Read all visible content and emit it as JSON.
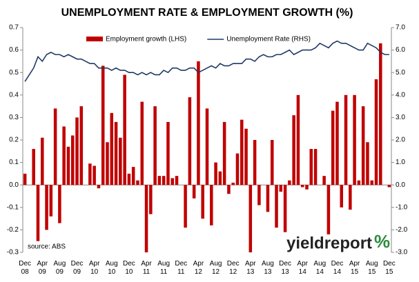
{
  "chart_data": {
    "type": "bar_line",
    "title": "UNEMPLOYMENT RATE & EMPLOYMENT GROWTH (%)",
    "categories": [
      "Dec 08",
      null,
      null,
      null,
      "Apr 09",
      null,
      null,
      null,
      "Aug 09",
      null,
      null,
      null,
      "Dec 09",
      null,
      null,
      null,
      "Apr 10",
      null,
      null,
      null,
      "Aug 10",
      null,
      null,
      null,
      "Dec 10",
      null,
      null,
      null,
      "Apr 11",
      null,
      null,
      null,
      "Aug 11",
      null,
      null,
      null,
      "Dec 11",
      null,
      null,
      null,
      "Apr 12",
      null,
      null,
      null,
      "Aug 12",
      null,
      null,
      null,
      "Dec 12",
      null,
      null,
      null,
      "Apr 13",
      null,
      null,
      null,
      "Aug 13",
      null,
      null,
      null,
      "Dec 13",
      null,
      null,
      null,
      "Apr 14",
      null,
      null,
      null,
      "Aug 14",
      null,
      null,
      null,
      "Dec 14",
      null,
      null,
      null,
      "Apr 15",
      null,
      null,
      null,
      "Aug 15",
      null,
      null,
      null,
      "Dec 15"
    ],
    "series": [
      {
        "name": "Employment growth (LHS)",
        "type": "bar",
        "color": "#c00000",
        "values": [
          0.05,
          0,
          0.16,
          -0.25,
          0.21,
          -0.2,
          -0.14,
          0.34,
          -0.17,
          0.26,
          0.17,
          0.22,
          0.3,
          0.35,
          0,
          0.095,
          0.085,
          -0.015,
          0.53,
          0.19,
          0.32,
          0.28,
          0.21,
          0.49,
          0.05,
          0.08,
          0.02,
          0.37,
          -0.3,
          -0.13,
          0.35,
          0.04,
          0.04,
          0.28,
          0.03,
          0.04,
          0,
          -0.19,
          0.39,
          -0.06,
          0.55,
          -0.15,
          0.34,
          -0.18,
          0.1,
          0.06,
          0.28,
          -0.04,
          0.01,
          0.14,
          0.29,
          0.25,
          -0.3,
          0.2,
          -0.09,
          0,
          -0.12,
          0.2,
          -0.19,
          -0.03,
          -0.21,
          0.02,
          0.31,
          0.4,
          -0.01,
          -0.02,
          0.16,
          0.16,
          0,
          0.04,
          -0.22,
          0.33,
          0.37,
          -0.1,
          0.4,
          -0.11,
          0.4,
          0.02,
          0.35,
          0.19,
          0.02,
          0.47,
          0.63,
          0,
          -0.01
        ]
      },
      {
        "name": "Unemployment Rate (RHS)",
        "type": "line",
        "axis": "y2",
        "color": "#1f3864",
        "values": [
          4.6,
          4.9,
          5.2,
          5.7,
          5.5,
          5.8,
          5.9,
          5.8,
          5.8,
          5.7,
          5.8,
          5.7,
          5.6,
          5.6,
          5.5,
          5.4,
          5.4,
          5.2,
          5.2,
          5.2,
          5.1,
          5.2,
          5.1,
          5.1,
          5.0,
          5.0,
          4.9,
          5.0,
          4.9,
          5.0,
          4.9,
          4.9,
          5.1,
          5.0,
          5.2,
          5.2,
          5.1,
          5.1,
          5.2,
          5.2,
          5.0,
          5.1,
          5.2,
          5.3,
          5.2,
          5.4,
          5.3,
          5.3,
          5.4,
          5.4,
          5.4,
          5.6,
          5.6,
          5.5,
          5.7,
          5.8,
          5.7,
          5.7,
          5.8,
          5.8,
          5.9,
          6.0,
          5.8,
          5.9,
          6.0,
          6.0,
          6.0,
          6.1,
          6.3,
          6.2,
          6.1,
          6.3,
          6.4,
          6.3,
          6.3,
          6.2,
          6.1,
          6.0,
          6.0,
          6.3,
          6.2,
          6.1,
          5.9,
          5.8,
          5.8
        ]
      }
    ],
    "ylim": [
      -0.3,
      0.7
    ],
    "yticks": [
      {
        "value": -0.3,
        "label": "-0.3"
      },
      {
        "value": -0.2,
        "label": "-0.2"
      },
      {
        "value": -0.1,
        "label": "-0.1"
      },
      {
        "value": 0,
        "label": "0.0"
      },
      0.1,
      0.2,
      0.3,
      0.4,
      0.5,
      0.6,
      0.7
    ],
    "y2lim": [
      -3,
      7
    ],
    "y2ticks": [
      {
        "value": -3,
        "label": "-3.0"
      },
      {
        "value": -2,
        "label": "-2.0"
      },
      {
        "value": -1,
        "label": "-1.0"
      },
      {
        "value": 0,
        "label": "0.0"
      },
      {
        "value": 1,
        "label": "1.0"
      },
      {
        "value": 2,
        "label": "2.0"
      },
      {
        "value": 3,
        "label": "3.0"
      },
      {
        "value": 4,
        "label": "4.0"
      },
      {
        "value": 5,
        "label": "5.0"
      },
      {
        "value": 6,
        "label": "6.0"
      },
      {
        "value": 7,
        "label": "7.0"
      }
    ],
    "legend": "top",
    "source": "source: ABS",
    "logo": "yieldreport",
    "logo_symbol": "%"
  }
}
